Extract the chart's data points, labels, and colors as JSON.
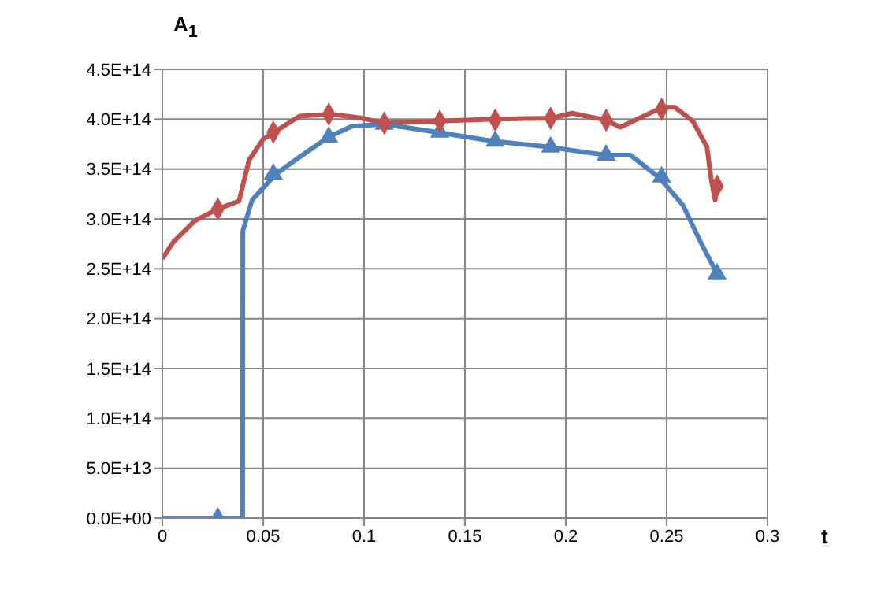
{
  "chart_data": {
    "type": "line",
    "xlabel": "t",
    "ylabel": "A$_{1}$",
    "grid": true,
    "xlim": [
      0,
      0.3
    ],
    "xticks": [
      0,
      0.05,
      0.1,
      0.15,
      0.2,
      0.25,
      0.3
    ],
    "ylim": [
      0,
      450000000000000.0
    ],
    "yticks": [
      {
        "value": 0,
        "label": "0.0E+00"
      },
      {
        "value": 50000000000000.0,
        "label": "5.0E+13"
      },
      {
        "value": 100000000000000.0,
        "label": "1.0E+14"
      },
      {
        "value": 150000000000000.0,
        "label": "1.5E+14"
      },
      {
        "value": 200000000000000.0,
        "label": "2.0E+14"
      },
      {
        "value": 250000000000000.0,
        "label": "2.5E+14"
      },
      {
        "value": 300000000000000.0,
        "label": "3.0E+14"
      },
      {
        "value": 350000000000000.0,
        "label": "3.5E+14"
      },
      {
        "value": 400000000000000.0,
        "label": "4.0E+14"
      },
      {
        "value": 450000000000000.0,
        "label": "4.5E+14"
      }
    ],
    "series": [
      {
        "marker": "none",
        "color": "#c0504d",
        "x": [
          0,
          0.0055,
          0.016,
          0.0276,
          0.038,
          0.043,
          0.05,
          0.0555,
          0.068,
          0.0836,
          0.099,
          0.11,
          0.138,
          0.164,
          0.193,
          0.203,
          0.22,
          0.227,
          0.248,
          0.254,
          0.263,
          0.27,
          0.272,
          0.274,
          0.275
        ],
        "values": [
          260000000000000.0,
          277000000000000.0,
          298000000000000.0,
          310000000000000.0,
          318000000000000.0,
          359000000000000.0,
          380000000000000.0,
          387000000000000.0,
          403000000000000.0,
          405000000000000.0,
          401000000000000.0,
          396000000000000.0,
          398000000000000.0,
          400000000000000.0,
          401000000000000.0,
          406000000000000.0,
          399000000000000.0,
          392000000000000.0,
          412000000000000.0,
          412000000000000.0,
          398000000000000.0,
          372000000000000.0,
          341000000000000.0,
          319000000000000.0,
          333000000000000.0
        ]
      },
      {
        "marker": "none",
        "color": "#4f81bd",
        "x": [
          0,
          0.0279,
          0.0398,
          0.0399,
          0.0445,
          0.0563,
          0.068,
          0.0823,
          0.094,
          0.11,
          0.1357,
          0.164,
          0.192,
          0.209,
          0.22,
          0.232,
          0.246,
          0.258,
          0.268,
          0.275
        ],
        "values": [
          0,
          0,
          0,
          288000000000000.0,
          319000000000000.0,
          345000000000000.0,
          362000000000000.0,
          382000000000000.0,
          393000000000000.0,
          395000000000000.0,
          387000000000000.0,
          378000000000000.0,
          372000000000000.0,
          367000000000000.0,
          364000000000000.0,
          364000000000000.0,
          342000000000000.0,
          314000000000000.0,
          272000000000000.0,
          245000000000000.0
        ]
      },
      {
        "type": "scatter",
        "marker": "triangle",
        "color": "#4f81bd",
        "x": [
          0.0275,
          0.055,
          0.0825,
          0.11,
          0.1375,
          0.165,
          0.1925,
          0.22,
          0.2475,
          0.275
        ],
        "values": [
          0,
          345000000000000.0,
          382000000000000.0,
          395000000000000.0,
          387000000000000.0,
          378000000000000.0,
          372000000000000.0,
          364000000000000.0,
          342000000000000.0,
          245000000000000.0
        ]
      },
      {
        "type": "scatter",
        "marker": "diamond",
        "color": "#c0504d",
        "x": [
          0.0275,
          0.055,
          0.0825,
          0.11,
          0.1375,
          0.165,
          0.1925,
          0.22,
          0.2475,
          0.275
        ],
        "values": [
          310000000000000.0,
          387000000000000.0,
          405000000000000.0,
          396000000000000.0,
          398000000000000.0,
          399000000000000.0,
          401000000000000.0,
          399000000000000.0,
          410000000000000.0,
          333000000000000.0
        ]
      }
    ]
  }
}
